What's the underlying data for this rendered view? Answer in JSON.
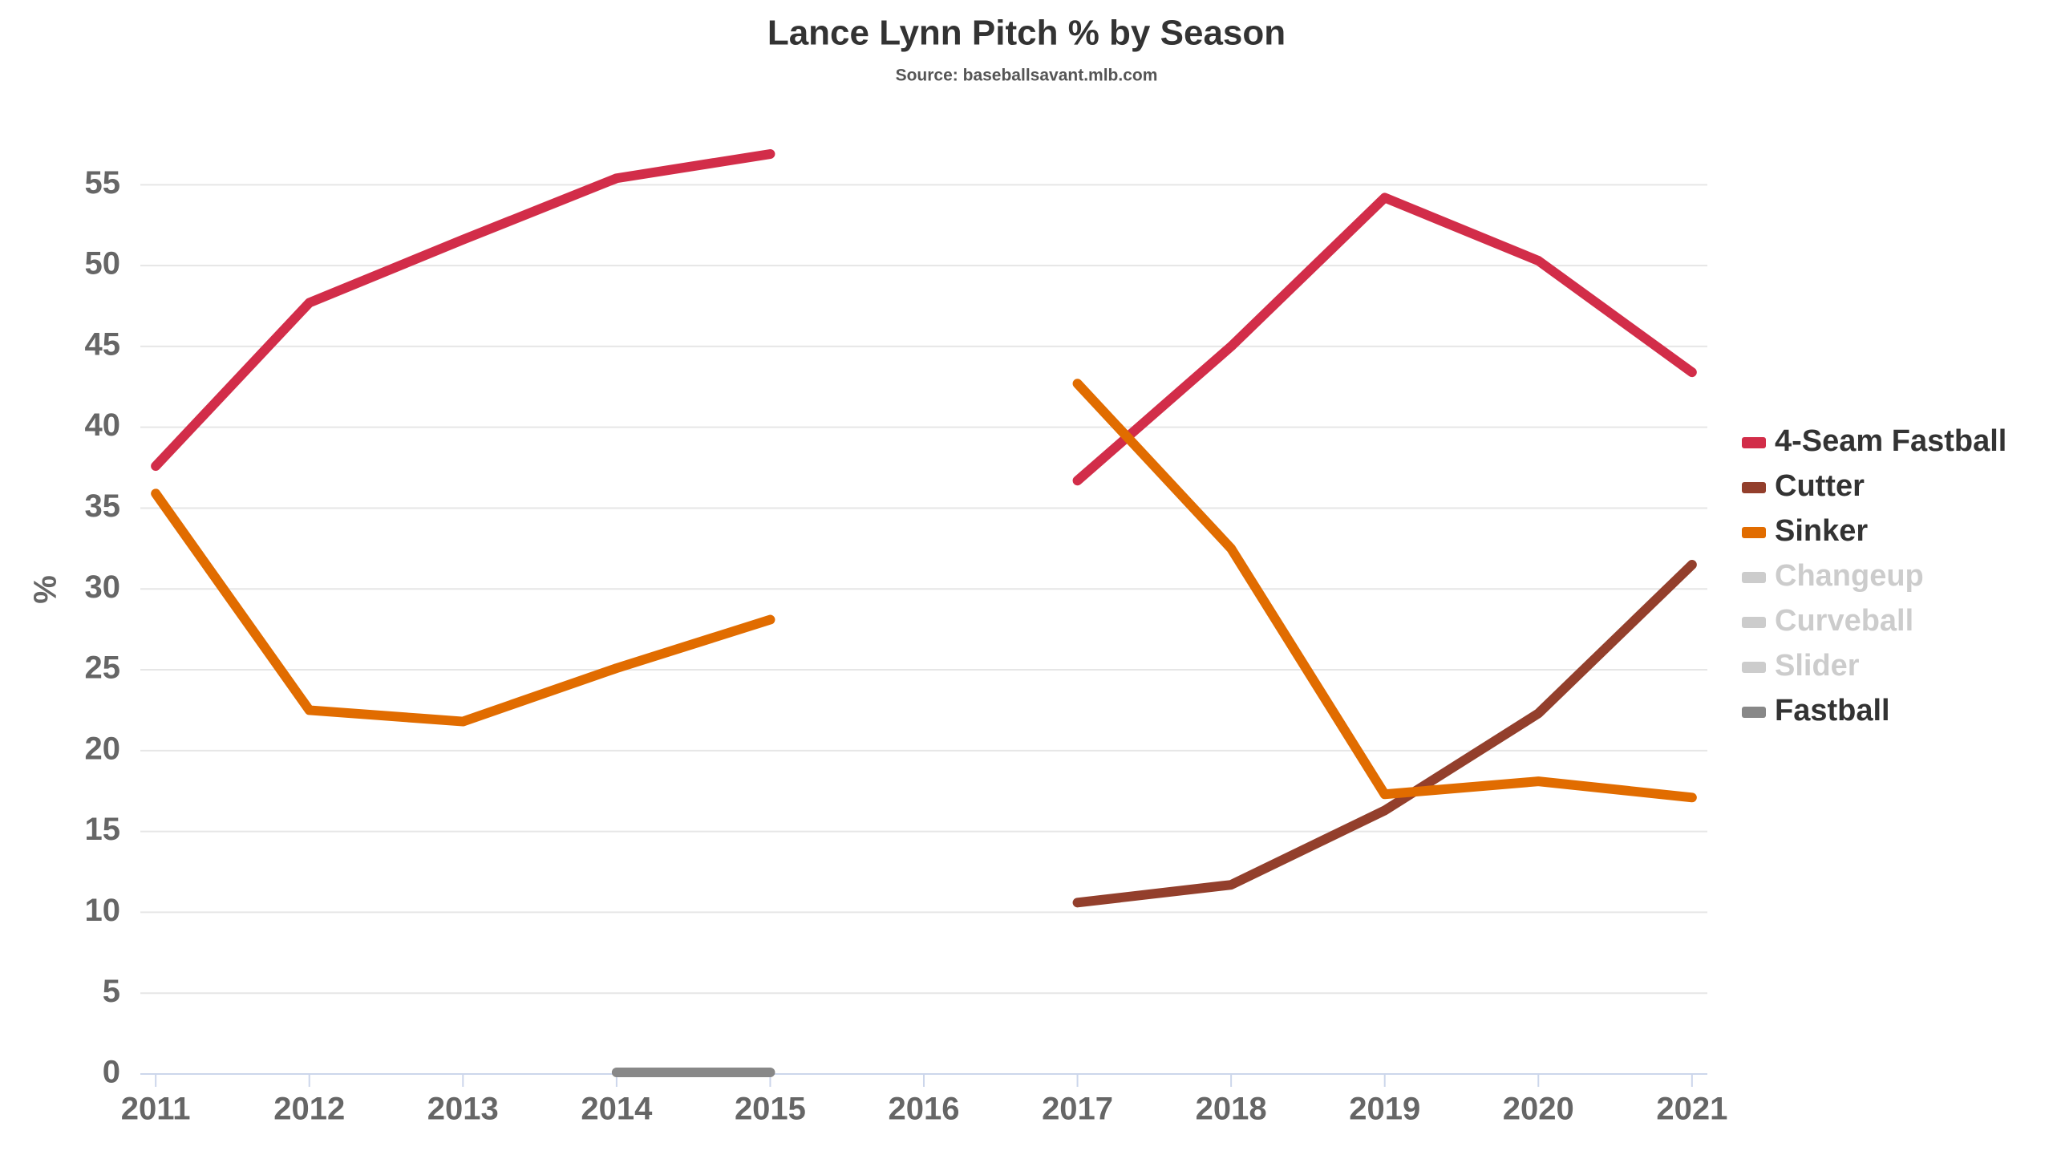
{
  "chart_data": {
    "type": "line",
    "title": "Lance Lynn Pitch % by Season",
    "subtitle": "Source: baseballsavant.mlb.com",
    "y_label": "%",
    "x": [
      2011,
      2012,
      2013,
      2014,
      2015,
      2016,
      2017,
      2018,
      2019,
      2020,
      2021
    ],
    "series": [
      {
        "name": "4-Seam Fastball",
        "color": "#d22d49",
        "visible": true,
        "values": [
          37.6,
          47.7,
          51.6,
          55.4,
          56.9,
          null,
          36.7,
          45.0,
          54.2,
          50.3,
          43.4
        ]
      },
      {
        "name": "Cutter",
        "color": "#933f2c",
        "visible": true,
        "values": [
          null,
          null,
          null,
          null,
          null,
          null,
          10.6,
          11.7,
          16.3,
          22.3,
          31.5
        ]
      },
      {
        "name": "Sinker",
        "color": "#e16c00",
        "visible": true,
        "values": [
          35.9,
          22.5,
          21.8,
          25.1,
          28.1,
          null,
          42.7,
          32.5,
          17.3,
          18.1,
          17.1
        ]
      },
      {
        "name": "Changeup",
        "color": "#cccccc",
        "visible": false,
        "values": [
          null,
          null,
          null,
          null,
          null,
          null,
          null,
          null,
          null,
          null,
          null
        ]
      },
      {
        "name": "Curveball",
        "color": "#cccccc",
        "visible": false,
        "values": [
          null,
          null,
          null,
          null,
          null,
          null,
          null,
          null,
          null,
          null,
          null
        ]
      },
      {
        "name": "Slider",
        "color": "#cccccc",
        "visible": false,
        "values": [
          null,
          null,
          null,
          null,
          null,
          null,
          null,
          null,
          null,
          null,
          null
        ]
      },
      {
        "name": "Fastball",
        "color": "#888888",
        "visible": true,
        "values": [
          null,
          null,
          null,
          0.1,
          0.1,
          null,
          null,
          null,
          null,
          null,
          null
        ]
      }
    ],
    "xlim": [
      2010.9,
      2021.1
    ],
    "xticks": [
      2011,
      2012,
      2013,
      2014,
      2015,
      2016,
      2017,
      2018,
      2019,
      2020,
      2021
    ],
    "ylim": [
      0,
      57
    ],
    "yticks": [
      0,
      5,
      10,
      15,
      20,
      25,
      30,
      35,
      40,
      45,
      50,
      55
    ],
    "grid": true,
    "legend": "right"
  }
}
